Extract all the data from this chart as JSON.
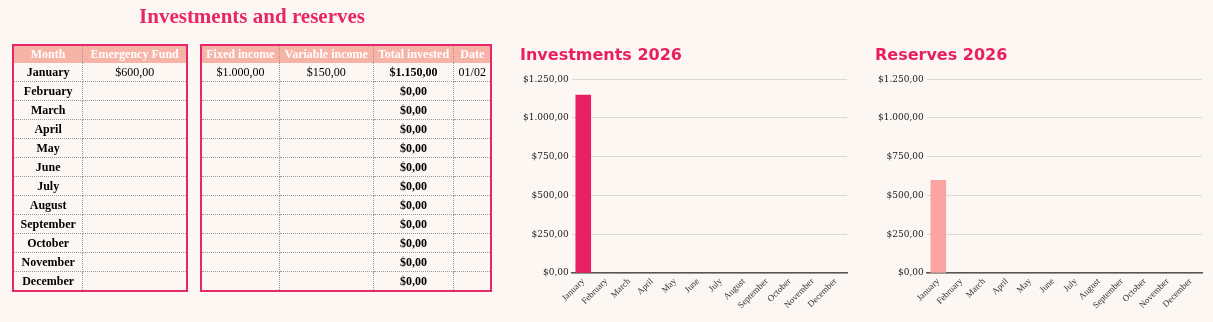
{
  "chart_data": [
    {
      "type": "other",
      "title": "Investments and reserves",
      "xlabel": "Month",
      "categories": [
        "January",
        "February",
        "March",
        "April",
        "May",
        "June",
        "July",
        "August",
        "September",
        "October",
        "November",
        "December"
      ],
      "series": [
        {
          "name": "Emergency Fund",
          "values": [
            600,
            null,
            null,
            null,
            null,
            null,
            null,
            null,
            null,
            null,
            null,
            null
          ],
          "value_labels": [
            "$600,00",
            null,
            null,
            null,
            null,
            null,
            null,
            null,
            null,
            null,
            null,
            null
          ]
        },
        {
          "name": "Fixed income",
          "values": [
            1000,
            null,
            null,
            null,
            null,
            null,
            null,
            null,
            null,
            null,
            null,
            null
          ],
          "value_labels": [
            "$1.000,00",
            null,
            null,
            null,
            null,
            null,
            null,
            null,
            null,
            null,
            null,
            null
          ]
        },
        {
          "name": "Variable income",
          "values": [
            150,
            null,
            null,
            null,
            null,
            null,
            null,
            null,
            null,
            null,
            null,
            null
          ],
          "value_labels": [
            "$150,00",
            null,
            null,
            null,
            null,
            null,
            null,
            null,
            null,
            null,
            null,
            null
          ]
        },
        {
          "name": "Total invested",
          "values": [
            1150,
            0,
            0,
            0,
            0,
            0,
            0,
            0,
            0,
            0,
            0,
            0
          ],
          "value_labels": [
            "$1.150,00",
            "$0,00",
            "$0,00",
            "$0,00",
            "$0,00",
            "$0,00",
            "$0,00",
            "$0,00",
            "$0,00",
            "$0,00",
            "$0,00",
            "$0,00"
          ]
        },
        {
          "name": "Date",
          "values": [
            null,
            null,
            null,
            null,
            null,
            null,
            null,
            null,
            null,
            null,
            null,
            null
          ],
          "value_labels": [
            "01/02",
            null,
            null,
            null,
            null,
            null,
            null,
            null,
            null,
            null,
            null,
            null
          ]
        }
      ]
    },
    {
      "type": "bar",
      "title": "Investments 2026",
      "categories": [
        "January",
        "February",
        "March",
        "April",
        "May",
        "June",
        "July",
        "August",
        "September",
        "October",
        "November",
        "December"
      ],
      "values": [
        1150,
        0,
        0,
        0,
        0,
        0,
        0,
        0,
        0,
        0,
        0,
        0
      ],
      "color": "#e81f63",
      "ylim": [
        0,
        1250
      ],
      "yticks": [
        {
          "value": 0,
          "label": "$0,00"
        },
        {
          "value": 250,
          "label": "$250,00"
        },
        {
          "value": 500,
          "label": "$500,00"
        },
        {
          "value": 750,
          "label": "$750,00"
        },
        {
          "value": 1000,
          "label": "$1.000,00"
        },
        {
          "value": 1250,
          "label": "$1.250,00"
        }
      ],
      "grid": "y",
      "legend": false
    },
    {
      "type": "bar",
      "title": "Reserves 2026",
      "categories": [
        "January",
        "February",
        "March",
        "April",
        "May",
        "June",
        "July",
        "August",
        "September",
        "October",
        "November",
        "December"
      ],
      "values": [
        600,
        null,
        null,
        null,
        null,
        null,
        null,
        null,
        null,
        null,
        null,
        null
      ],
      "color": "#fca5a0",
      "ylim": [
        0,
        1250
      ],
      "yticks": [
        {
          "value": 0,
          "label": "$0,00"
        },
        {
          "value": 250,
          "label": "$250,00"
        },
        {
          "value": 500,
          "label": "$500,00"
        },
        {
          "value": 750,
          "label": "$750,00"
        },
        {
          "value": 1000,
          "label": "$1.000,00"
        },
        {
          "value": 1250,
          "label": "$1.250,00"
        }
      ],
      "grid": "y",
      "legend": false
    }
  ]
}
